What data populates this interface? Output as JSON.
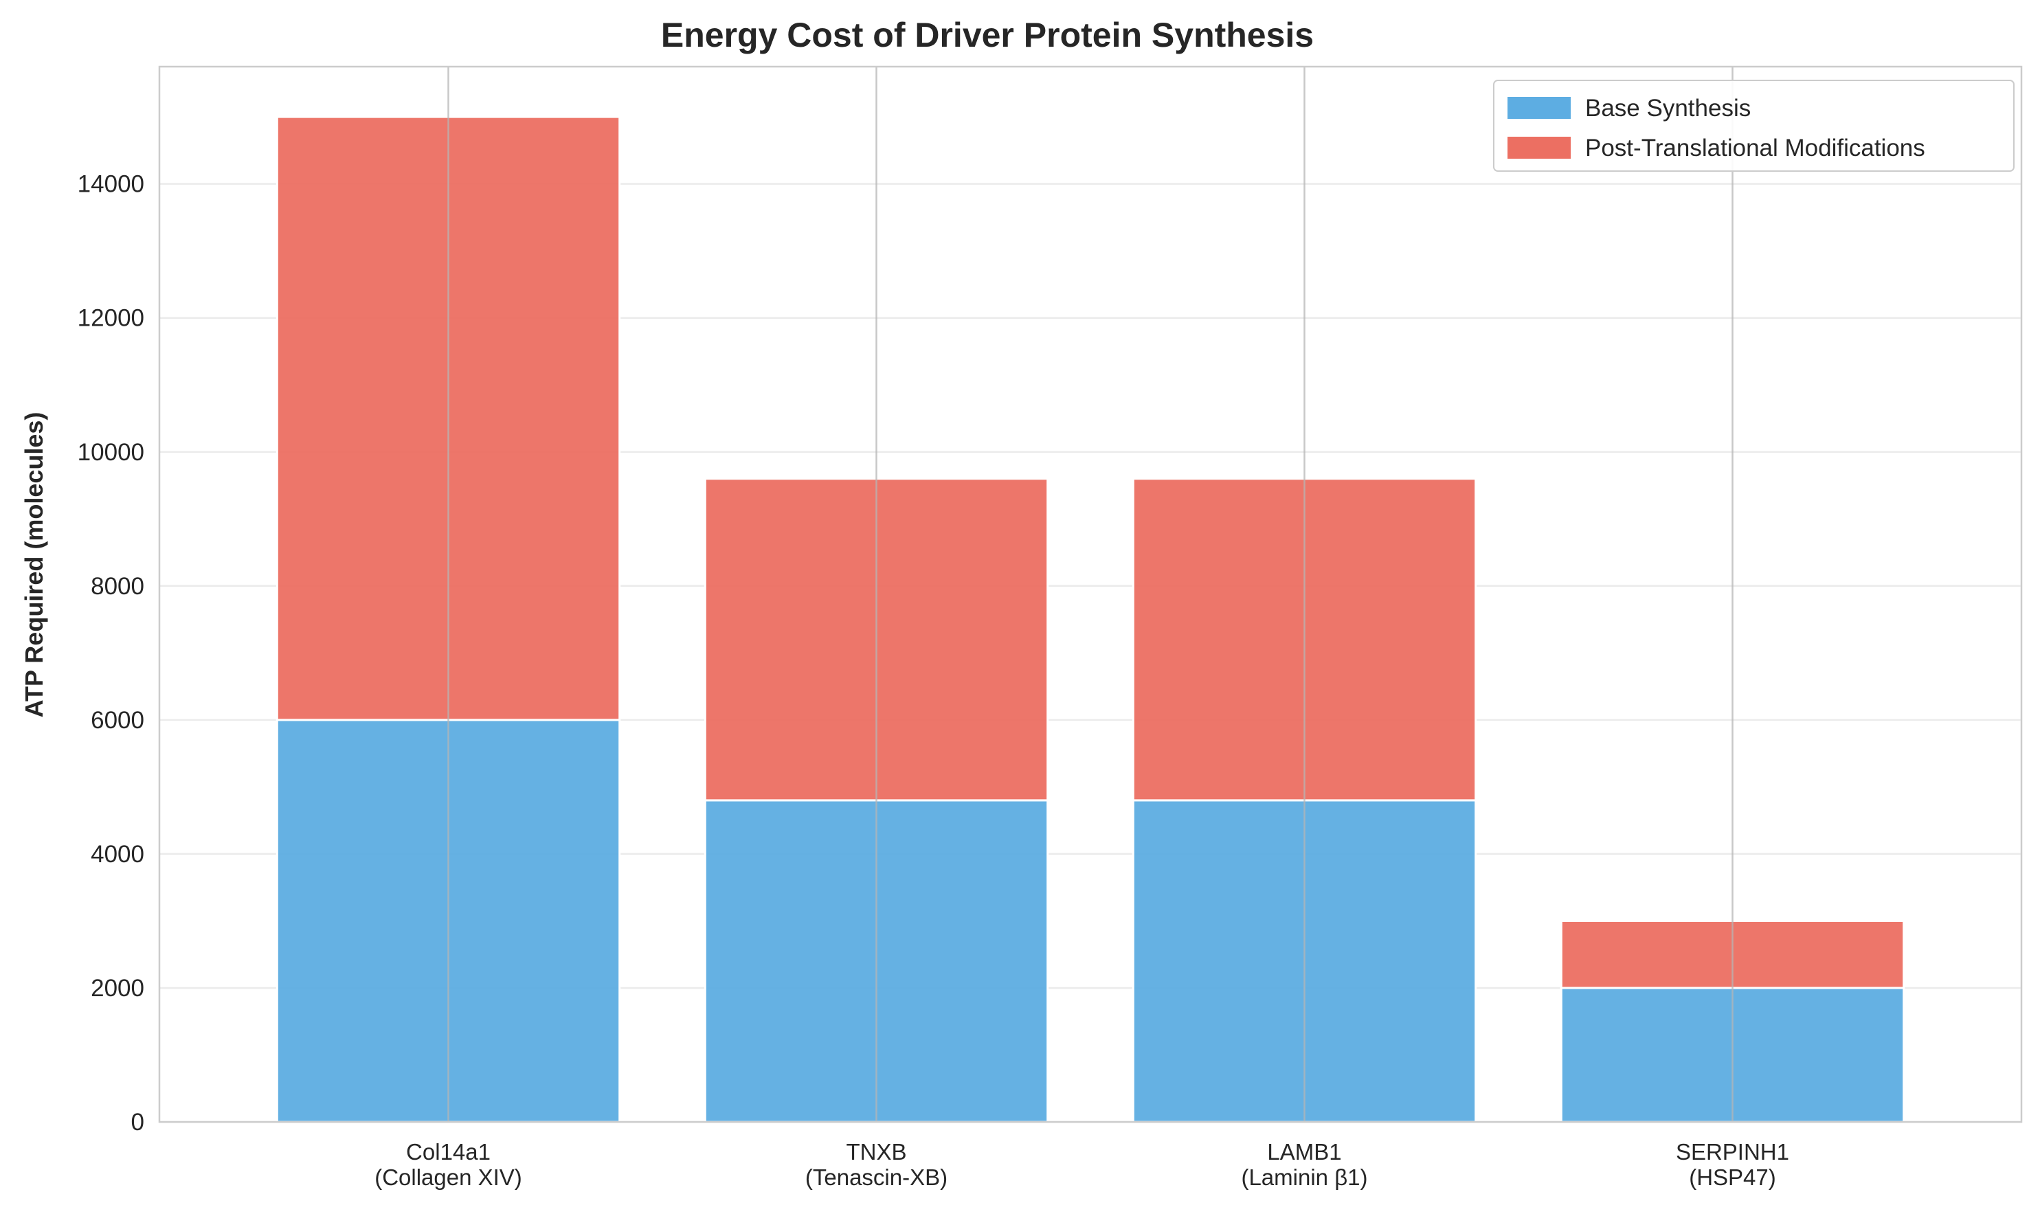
{
  "chart_data": {
    "type": "bar",
    "stacked": true,
    "title": "Energy Cost of Driver Protein Synthesis",
    "xlabel": "",
    "ylabel": "ATP Required (molecules)",
    "ylim": [
      0,
      15750
    ],
    "yticks": [
      0,
      2000,
      4000,
      6000,
      8000,
      10000,
      12000,
      14000
    ],
    "categories": [
      [
        "Col14a1",
        "(Collagen XIV)"
      ],
      [
        "TNXB",
        "(Tenascin-XB)"
      ],
      [
        "LAMB1",
        "(Laminin β1)"
      ],
      [
        "SERPINH1",
        "(HSP47)"
      ]
    ],
    "series": [
      {
        "name": "Base Synthesis",
        "color": "#5dade2",
        "values": [
          6000,
          4800,
          4800,
          2000
        ]
      },
      {
        "name": "Post-Translational Modifications",
        "color": "#ec6f62",
        "values": [
          9000,
          4800,
          4800,
          1000
        ]
      }
    ],
    "grid": true,
    "legend_position": "top-right"
  }
}
